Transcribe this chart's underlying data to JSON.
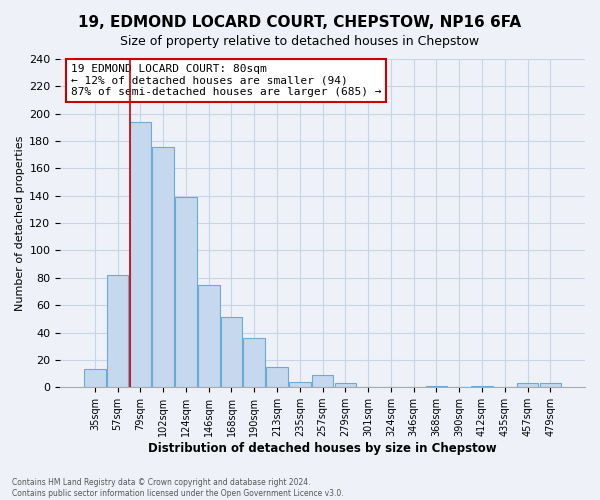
{
  "title": "19, EDMOND LOCARD COURT, CHEPSTOW, NP16 6FA",
  "subtitle": "Size of property relative to detached houses in Chepstow",
  "xlabel": "Distribution of detached houses by size in Chepstow",
  "ylabel": "Number of detached properties",
  "bar_labels": [
    "35sqm",
    "57sqm",
    "79sqm",
    "102sqm",
    "124sqm",
    "146sqm",
    "168sqm",
    "190sqm",
    "213sqm",
    "235sqm",
    "257sqm",
    "279sqm",
    "301sqm",
    "324sqm",
    "346sqm",
    "368sqm",
    "390sqm",
    "412sqm",
    "435sqm",
    "457sqm",
    "479sqm"
  ],
  "bar_heights": [
    13,
    82,
    194,
    176,
    139,
    75,
    51,
    36,
    15,
    4,
    9,
    3,
    0,
    0,
    0,
    1,
    0,
    1,
    0,
    3,
    3
  ],
  "bar_color": "#c5d8ee",
  "bar_edge_color": "#6aaad4",
  "annotation_title": "19 EDMOND LOCARD COURT: 80sqm",
  "annotation_line1": "← 12% of detached houses are smaller (94)",
  "annotation_line2": "87% of semi-detached houses are larger (685) →",
  "annotation_box_color": "white",
  "annotation_box_edge_color": "#cc0000",
  "vline_color": "#cc0000",
  "ylim": [
    0,
    240
  ],
  "yticks": [
    0,
    20,
    40,
    60,
    80,
    100,
    120,
    140,
    160,
    180,
    200,
    220,
    240
  ],
  "footer_line1": "Contains HM Land Registry data © Crown copyright and database right 2024.",
  "footer_line2": "Contains public sector information licensed under the Open Government Licence v3.0.",
  "background_color": "#eef2f8",
  "grid_color": "#c8d4e8",
  "title_fontsize": 11,
  "subtitle_fontsize": 9
}
